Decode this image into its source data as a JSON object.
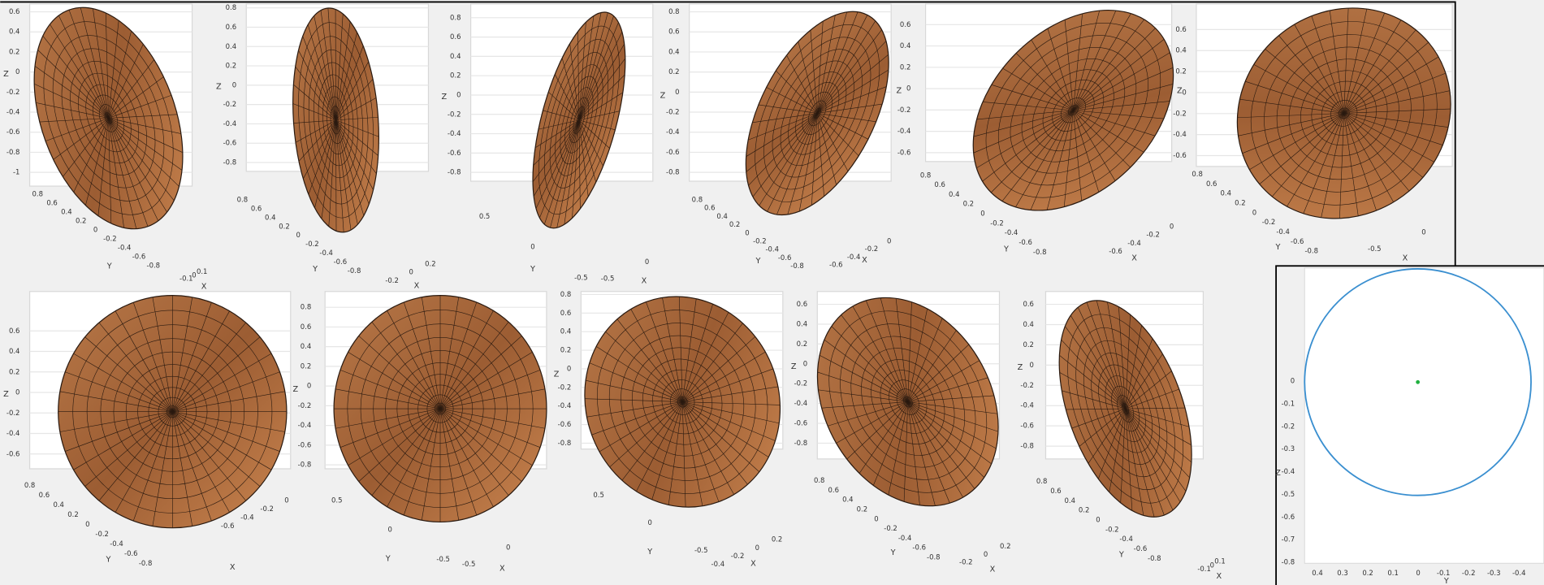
{
  "panels": [
    {
      "z_label": "Z",
      "y_label": "Y",
      "x_label": "X",
      "z_ticks": [
        "0.6",
        "0.4",
        "0.2",
        "0",
        "-0.2",
        "-0.4",
        "-0.6",
        "-0.8",
        "-1"
      ],
      "y_ticks": [
        "0.8",
        "0.6",
        "0.4",
        "0.2",
        "0",
        "-0.2",
        "-0.4",
        "-0.6",
        "-0.8"
      ],
      "x_ticks": [
        "0.1",
        "0",
        "-0.1"
      ]
    },
    {
      "z_label": "Z",
      "y_label": "Y",
      "x_label": "X",
      "z_ticks": [
        "0.8",
        "0.6",
        "0.4",
        "0.2",
        "0",
        "-0.2",
        "-0.4",
        "-0.6",
        "-0.8"
      ],
      "y_ticks": [
        "0.8",
        "0.6",
        "0.4",
        "0.2",
        "0",
        "-0.2",
        "-0.4",
        "-0.6",
        "-0.8"
      ],
      "x_ticks": [
        "0.2",
        "0",
        "-0.2"
      ]
    },
    {
      "z_label": "Z",
      "y_label": "Y",
      "x_label": "X",
      "z_ticks": [
        "0.8",
        "0.6",
        "0.4",
        "0.2",
        "0",
        "-0.2",
        "-0.4",
        "-0.6",
        "-0.8"
      ],
      "y_ticks": [
        "0.5",
        "0",
        "-0.5"
      ],
      "x_ticks": [
        "0",
        "-0.5"
      ]
    },
    {
      "z_label": "Z",
      "y_label": "Y",
      "x_label": "X",
      "z_ticks": [
        "0.8",
        "0.6",
        "0.4",
        "0.2",
        "0",
        "-0.2",
        "-0.4",
        "-0.6",
        "-0.8"
      ],
      "y_ticks": [
        "0.8",
        "0.6",
        "0.4",
        "0.2",
        "0",
        "-0.2",
        "-0.4",
        "-0.6",
        "-0.8"
      ],
      "x_ticks": [
        "0",
        "-0.2",
        "-0.4",
        "-0.6"
      ]
    },
    {
      "z_label": "Z",
      "y_label": "Y",
      "x_label": "X",
      "z_ticks": [
        "0.6",
        "0.4",
        "0.2",
        "0",
        "-0.2",
        "-0.4",
        "-0.6"
      ],
      "y_ticks": [
        "0.8",
        "0.6",
        "0.4",
        "0.2",
        "0",
        "-0.2",
        "-0.4",
        "-0.6",
        "-0.8"
      ],
      "x_ticks": [
        "0",
        "-0.2",
        "-0.4",
        "-0.6"
      ]
    },
    {
      "z_label": "Z",
      "y_label": "Y",
      "x_label": "X",
      "z_ticks": [
        "0.6",
        "0.4",
        "0.2",
        "0",
        "-0.2",
        "-0.4",
        "-0.6"
      ],
      "y_ticks": [
        "0.8",
        "0.6",
        "0.4",
        "0.2",
        "0",
        "-0.2",
        "-0.4",
        "-0.6",
        "-0.8"
      ],
      "x_ticks": [
        "0",
        "-0.5"
      ]
    },
    {
      "z_label": "Z",
      "y_label": "Y",
      "x_label": "X",
      "z_ticks": [
        "0.6",
        "0.4",
        "0.2",
        "0",
        "-0.2",
        "-0.4",
        "-0.6"
      ],
      "y_ticks": [
        "0.8",
        "0.6",
        "0.4",
        "0.2",
        "0",
        "-0.2",
        "-0.4",
        "-0.6",
        "-0.8"
      ],
      "x_ticks": [
        "0",
        "-0.2",
        "-0.4",
        "-0.6"
      ]
    },
    {
      "z_label": "Z",
      "y_label": "Y",
      "x_label": "X",
      "z_ticks": [
        "0.8",
        "0.6",
        "0.4",
        "0.2",
        "0",
        "-0.2",
        "-0.4",
        "-0.6",
        "-0.8"
      ],
      "y_ticks": [
        "0.5",
        "0",
        "-0.5"
      ],
      "x_ticks": [
        "0",
        "-0.5"
      ]
    },
    {
      "z_label": "Z",
      "y_label": "Y",
      "x_label": "X",
      "z_ticks": [
        "0.8",
        "0.6",
        "0.4",
        "0.2",
        "0",
        "-0.2",
        "-0.4",
        "-0.6",
        "-0.8"
      ],
      "y_ticks": [
        "0.5",
        "0",
        "-0.5"
      ],
      "x_ticks": [
        "0.2",
        "0",
        "-0.2",
        "-0.4"
      ]
    },
    {
      "z_label": "Z",
      "y_label": "Y",
      "x_label": "X",
      "z_ticks": [
        "0.6",
        "0.4",
        "0.2",
        "0",
        "-0.2",
        "-0.4",
        "-0.6",
        "-0.8"
      ],
      "y_ticks": [
        "0.8",
        "0.6",
        "0.4",
        "0.2",
        "0",
        "-0.2",
        "-0.4",
        "-0.6",
        "-0.8"
      ],
      "x_ticks": [
        "0.2",
        "0",
        "-0.2"
      ]
    },
    {
      "z_label": "Z",
      "y_label": "Y",
      "x_label": "X",
      "z_ticks": [
        "0.6",
        "0.4",
        "0.2",
        "0",
        "-0.2",
        "-0.4",
        "-0.6",
        "-0.8"
      ],
      "y_ticks": [
        "0.8",
        "0.6",
        "0.4",
        "0.2",
        "0",
        "-0.2",
        "-0.4",
        "-0.6",
        "-0.8"
      ],
      "x_ticks": [
        "0.1",
        "0",
        "-0.1"
      ]
    }
  ],
  "projection_panel": {
    "z_label": "Z",
    "y_label": "Y",
    "z_ticks": [
      "0",
      "-0.1",
      "-0.2",
      "-0.3",
      "-0.4",
      "-0.5",
      "-0.6",
      "-0.7",
      "-0.8"
    ],
    "y_ticks": [
      "0.4",
      "0.3",
      "0.2",
      "0.1",
      "0",
      "-0.1",
      "-0.2",
      "-0.3",
      "-0.4"
    ]
  }
}
